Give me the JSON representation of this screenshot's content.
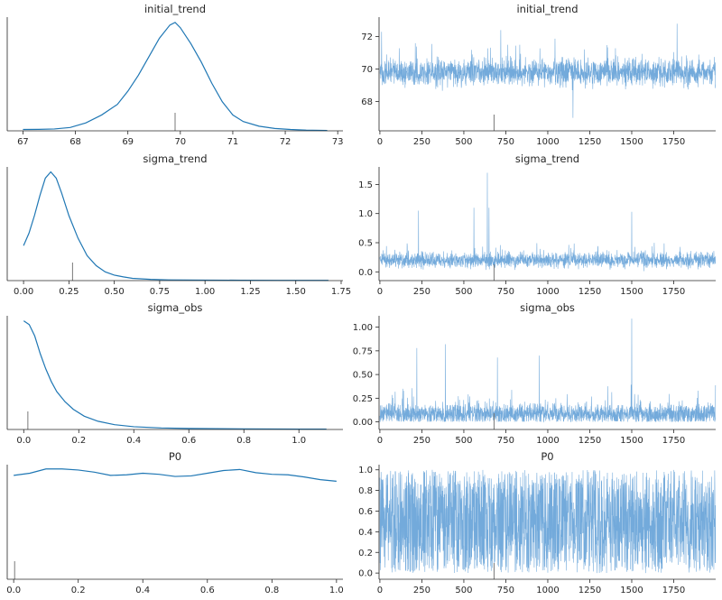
{
  "colors": {
    "line": "#1f77b4",
    "trace": "#5b9bd5",
    "rug": "#7a7a7a"
  },
  "chart_data": [
    {
      "type": "line",
      "title": "initial_trend",
      "xlim": [
        66.7,
        73.1
      ],
      "xticks": [
        "67",
        "68",
        "69",
        "70",
        "71",
        "72",
        "73"
      ],
      "xtick_values": [
        67,
        68,
        69,
        70,
        71,
        72,
        73
      ],
      "yticks": [],
      "ytick_values": [],
      "x": [
        67.0,
        67.3,
        67.6,
        67.9,
        68.2,
        68.5,
        68.8,
        69.0,
        69.2,
        69.4,
        69.6,
        69.8,
        69.9,
        70.0,
        70.2,
        70.4,
        70.6,
        70.8,
        71.0,
        71.2,
        71.5,
        71.8,
        72.1,
        72.4,
        72.8
      ],
      "y": [
        0.01,
        0.011,
        0.014,
        0.025,
        0.06,
        0.12,
        0.2,
        0.3,
        0.42,
        0.56,
        0.7,
        0.8,
        0.82,
        0.78,
        0.66,
        0.52,
        0.36,
        0.22,
        0.12,
        0.07,
        0.035,
        0.018,
        0.01,
        0.005,
        0.003
      ],
      "ymax": 0.86,
      "rug": 69.9
    },
    {
      "type": "line",
      "title": "initial_trend",
      "xlim": [
        -5,
        2000
      ],
      "ylim": [
        66.2,
        73.2
      ],
      "xticks": [
        "0",
        "250",
        "500",
        "750",
        "1000",
        "1250",
        "1500",
        "1750"
      ],
      "xtick_values": [
        0,
        250,
        500,
        750,
        1000,
        1250,
        1500,
        1750
      ],
      "yticks": [
        "68",
        "70",
        "72"
      ],
      "ytick_values": [
        68,
        70,
        72
      ],
      "trace": {
        "n": 2000,
        "center": 69.8,
        "spread": 0.75,
        "min": 67.0,
        "max": 72.9,
        "spikes": [
          [
            10,
            72.3
          ],
          [
            720,
            72.4
          ],
          [
            1150,
            67.0
          ],
          [
            1770,
            72.8
          ]
        ]
      },
      "rug": 680
    },
    {
      "type": "line",
      "title": "sigma_trend",
      "xlim": [
        -0.09,
        1.76
      ],
      "xticks": [
        "0.00",
        "0.25",
        "0.50",
        "0.75",
        "1.00",
        "1.25",
        "1.50",
        "1.75"
      ],
      "xtick_values": [
        0,
        0.25,
        0.5,
        0.75,
        1.0,
        1.25,
        1.5,
        1.75
      ],
      "yticks": [],
      "ytick_values": [],
      "x": [
        0.0,
        0.03,
        0.06,
        0.09,
        0.12,
        0.15,
        0.18,
        0.21,
        0.25,
        0.3,
        0.35,
        0.4,
        0.45,
        0.5,
        0.55,
        0.6,
        0.7,
        0.8,
        1.0,
        1.2,
        1.4,
        1.68
      ],
      "y": [
        1.4,
        1.9,
        2.6,
        3.4,
        4.1,
        4.35,
        4.1,
        3.5,
        2.6,
        1.7,
        1.0,
        0.6,
        0.35,
        0.22,
        0.15,
        0.09,
        0.05,
        0.03,
        0.02,
        0.015,
        0.012,
        0.01
      ],
      "ymax": 4.55,
      "rug": 0.27
    },
    {
      "type": "line",
      "title": "sigma_trend",
      "xlim": [
        -5,
        2000
      ],
      "ylim": [
        -0.15,
        1.8
      ],
      "xticks": [
        "0",
        "250",
        "500",
        "750",
        "1000",
        "1250",
        "1500",
        "1750"
      ],
      "xtick_values": [
        0,
        250,
        500,
        750,
        1000,
        1250,
        1500,
        1750
      ],
      "yticks": [
        "0.0",
        "0.5",
        "1.0",
        "1.5"
      ],
      "ytick_values": [
        0,
        0.5,
        1.0,
        1.5
      ],
      "trace": {
        "n": 2000,
        "center": 0.2,
        "spread": 0.12,
        "min": 0.0,
        "max": 1.7,
        "spikes": [
          [
            230,
            1.05
          ],
          [
            560,
            1.1
          ],
          [
            640,
            1.7
          ],
          [
            650,
            1.1
          ],
          [
            1500,
            1.03
          ]
        ]
      },
      "rug": 680
    },
    {
      "type": "line",
      "title": "sigma_obs",
      "xlim": [
        -0.06,
        1.16
      ],
      "xticks": [
        "0.0",
        "0.2",
        "0.4",
        "0.6",
        "0.8",
        "1.0"
      ],
      "xtick_values": [
        0,
        0.2,
        0.4,
        0.6,
        0.8,
        1.0
      ],
      "yticks": [],
      "ytick_values": [],
      "x": [
        0.0,
        0.02,
        0.04,
        0.06,
        0.08,
        0.1,
        0.12,
        0.15,
        0.18,
        0.22,
        0.27,
        0.33,
        0.4,
        0.5,
        0.6,
        0.7,
        0.8,
        0.9,
        1.0,
        1.1
      ],
      "y": [
        8.6,
        8.3,
        7.4,
        6.0,
        4.8,
        3.8,
        3.0,
        2.2,
        1.6,
        1.05,
        0.65,
        0.38,
        0.22,
        0.12,
        0.08,
        0.06,
        0.05,
        0.04,
        0.03,
        0.03
      ],
      "ymax": 9.0,
      "rug": 0.015
    },
    {
      "type": "line",
      "title": "sigma_obs",
      "xlim": [
        -5,
        2000
      ],
      "ylim": [
        -0.08,
        1.12
      ],
      "xticks": [
        "0",
        "250",
        "500",
        "750",
        "1000",
        "1250",
        "1500",
        "1750"
      ],
      "xtick_values": [
        0,
        250,
        500,
        750,
        1000,
        1250,
        1500,
        1750
      ],
      "yticks": [
        "0.00",
        "0.25",
        "0.50",
        "0.75",
        "1.00"
      ],
      "ytick_values": [
        0,
        0.25,
        0.5,
        0.75,
        1.0
      ],
      "trace": {
        "n": 2000,
        "center": 0.08,
        "spread": 0.1,
        "min": 0.0,
        "max": 1.1,
        "spikes": [
          [
            220,
            0.78
          ],
          [
            390,
            0.82
          ],
          [
            700,
            0.68
          ],
          [
            950,
            0.7
          ],
          [
            1500,
            1.09
          ]
        ]
      },
      "rug": 680
    },
    {
      "type": "line",
      "title": "P0",
      "xlim": [
        -0.02,
        1.02
      ],
      "xticks": [
        "0.0",
        "0.2",
        "0.4",
        "0.6",
        "0.8",
        "1.0"
      ],
      "xtick_values": [
        0,
        0.2,
        0.4,
        0.6,
        0.8,
        1.0
      ],
      "yticks": [],
      "ytick_values": [],
      "x": [
        0.0,
        0.05,
        0.1,
        0.15,
        0.2,
        0.25,
        0.3,
        0.35,
        0.4,
        0.45,
        0.5,
        0.55,
        0.6,
        0.65,
        0.7,
        0.75,
        0.8,
        0.85,
        0.9,
        0.95,
        1.0
      ],
      "y": [
        0.97,
        0.99,
        1.03,
        1.03,
        1.02,
        1.0,
        0.97,
        0.975,
        0.99,
        0.98,
        0.96,
        0.965,
        0.99,
        1.015,
        1.025,
        0.995,
        0.98,
        0.975,
        0.955,
        0.93,
        0.915
      ],
      "ymax": 1.07,
      "rug": 0.003
    },
    {
      "type": "line",
      "title": "P0",
      "xlim": [
        -5,
        2000
      ],
      "ylim": [
        -0.06,
        1.05
      ],
      "xticks": [
        "0",
        "250",
        "500",
        "750",
        "1000",
        "1250",
        "1500",
        "1750"
      ],
      "xtick_values": [
        0,
        250,
        500,
        750,
        1000,
        1250,
        1500,
        1750
      ],
      "yticks": [
        "0.0",
        "0.2",
        "0.4",
        "0.6",
        "0.8",
        "1.0"
      ],
      "ytick_values": [
        0,
        0.2,
        0.4,
        0.6,
        0.8,
        1.0
      ],
      "trace": {
        "n": 2000,
        "center": 0.5,
        "spread": 0.29,
        "min": 0.0,
        "max": 1.0,
        "uniform": true,
        "spikes": []
      },
      "rug": 680
    }
  ]
}
